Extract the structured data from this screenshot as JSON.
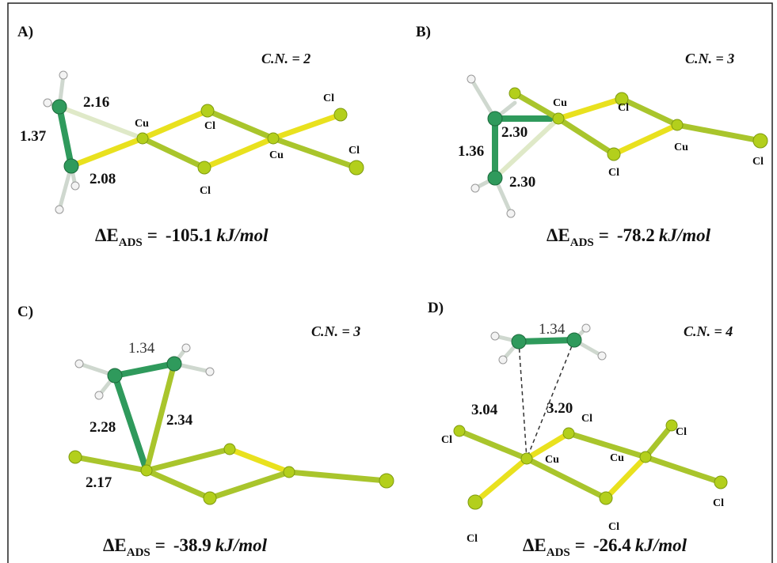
{
  "panels": [
    {
      "label": "A)",
      "cn": "C.N. = 2",
      "bonds": [
        "2.16",
        "1.37",
        "2.08"
      ],
      "atoms": [
        "Cu",
        "Cl",
        "Cl",
        "Cu",
        "Cl",
        "Cl"
      ],
      "energy": {
        "symbol": "ΔE",
        "subscript": "ADS",
        "equals": "=",
        "value": "-105.1",
        "unit": "kJ/mol"
      }
    },
    {
      "label": "B)",
      "cn": "C.N. = 3",
      "bonds": [
        "2.30",
        "1.36",
        "2.30"
      ],
      "atoms": [
        "Cu",
        "Cl",
        "Cl",
        "Cu",
        "Cl"
      ],
      "energy": {
        "symbol": "ΔE",
        "subscript": "ADS",
        "equals": "=",
        "value": "-78.2",
        "unit": "kJ/mol"
      }
    },
    {
      "label": "C)",
      "cn": "C.N. = 3",
      "bonds": [
        "1.34",
        "2.28",
        "2.34",
        "2.17"
      ],
      "energy": {
        "symbol": "ΔE",
        "subscript": "ADS",
        "equals": "=",
        "value": "-38.9",
        "unit": "kJ/mol"
      }
    },
    {
      "label": "D)",
      "cn": "C.N. = 4",
      "bonds": [
        "1.34",
        "3.04",
        "3.20"
      ],
      "atoms": [
        "Cl",
        "Cl",
        "Cl",
        "Cu",
        "Cu",
        "Cl",
        "Cl",
        "Cl"
      ],
      "energy": {
        "symbol": "ΔE",
        "subscript": "ADS",
        "equals": "=",
        "value": "-26.4",
        "unit": "kJ/mol"
      }
    }
  ]
}
